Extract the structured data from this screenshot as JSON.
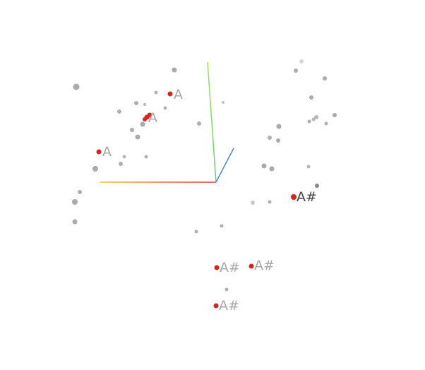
{
  "labels": {
    "a1": "A",
    "a2": "A",
    "a3": "A",
    "as1": "A#",
    "as2": "A#",
    "as3": "A#",
    "as4": "A#"
  },
  "colors": {
    "background": "#ffffff",
    "highlight_point": "#e0201c",
    "gray_point": "#a6a6a6",
    "label_light": "#a8a8a8",
    "label_dark": "#444444",
    "axis_x": "#e53935",
    "axis_y": "#7ee04a",
    "axis_z": "#4a86d8"
  },
  "view": {
    "type": "3d-scatter",
    "axes_visible": true,
    "grid": false,
    "legend": false
  }
}
